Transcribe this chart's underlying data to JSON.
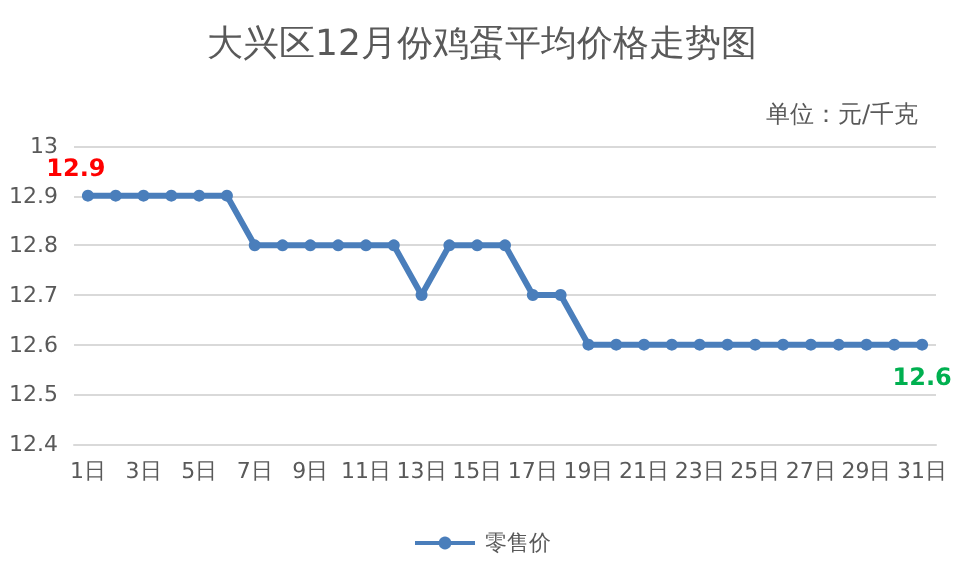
{
  "chart_data": {
    "type": "line",
    "title": "大兴区12月份鸡蛋平均价格走势图",
    "subtitle": "单位：元/千克",
    "categories": [
      "1日",
      null,
      "3日",
      null,
      "5日",
      null,
      "7日",
      null,
      "9日",
      null,
      "11日",
      null,
      "13日",
      null,
      "15日",
      null,
      "17日",
      null,
      "19日",
      null,
      "21日",
      null,
      "23日",
      null,
      "25日",
      null,
      "27日",
      null,
      "29日",
      null,
      "31日"
    ],
    "series": [
      {
        "name": "零售价",
        "color": "#4a7ebb",
        "values": [
          12.9,
          12.9,
          12.9,
          12.9,
          12.9,
          12.9,
          12.8,
          12.8,
          12.8,
          12.8,
          12.8,
          12.8,
          12.7,
          12.8,
          12.8,
          12.8,
          12.7,
          12.7,
          12.6,
          12.6,
          12.6,
          12.6,
          12.6,
          12.6,
          12.6,
          12.6,
          12.6,
          12.6,
          12.6,
          12.6,
          12.6
        ],
        "value_labels": [
          "12.9",
          null,
          null,
          null,
          null,
          null,
          null,
          null,
          null,
          null,
          null,
          null,
          null,
          null,
          null,
          null,
          null,
          null,
          null,
          null,
          null,
          null,
          null,
          null,
          null,
          null,
          null,
          null,
          null,
          null,
          "12.6"
        ]
      }
    ],
    "ylim": [
      12.4,
      13
    ],
    "yticks": [
      12.4,
      12.5,
      12.6,
      12.7,
      12.8,
      12.9,
      13
    ],
    "grid": "y",
    "legend": "bottom",
    "marker": "circle",
    "line_style": "solid"
  }
}
